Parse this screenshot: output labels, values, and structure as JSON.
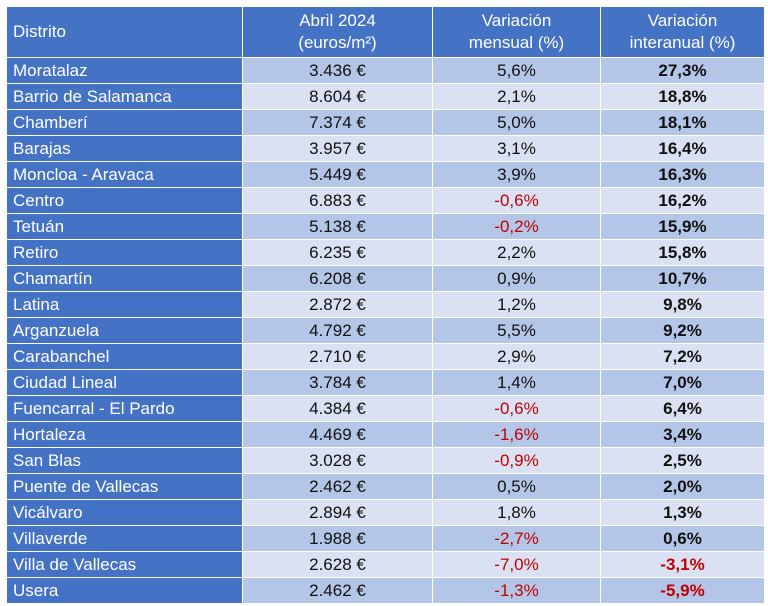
{
  "header": {
    "col1": "Distrito",
    "col2_line1": "Abril 2024",
    "col2_line2": "(euros/m²)",
    "col3_line1": "Variación",
    "col3_line2": "mensual (%)",
    "col4_line1": "Variación",
    "col4_line2": "interanual (%)"
  },
  "rows": [
    {
      "district": "Moratalaz",
      "price": "3.436 €",
      "monthly": "5,6%",
      "annual": "27,3%",
      "monthly_neg": false,
      "annual_neg": false
    },
    {
      "district": "Barrio de Salamanca",
      "price": "8.604 €",
      "monthly": "2,1%",
      "annual": "18,8%",
      "monthly_neg": false,
      "annual_neg": false
    },
    {
      "district": "Chamberí",
      "price": "7.374 €",
      "monthly": "5,0%",
      "annual": "18,1%",
      "monthly_neg": false,
      "annual_neg": false
    },
    {
      "district": "Barajas",
      "price": "3.957 €",
      "monthly": "3,1%",
      "annual": "16,4%",
      "monthly_neg": false,
      "annual_neg": false
    },
    {
      "district": "Moncloa - Aravaca",
      "price": "5.449 €",
      "monthly": "3,9%",
      "annual": "16,3%",
      "monthly_neg": false,
      "annual_neg": false
    },
    {
      "district": "Centro",
      "price": "6.883 €",
      "monthly": "-0,6%",
      "annual": "16,2%",
      "monthly_neg": true,
      "annual_neg": false
    },
    {
      "district": "Tetuán",
      "price": "5.138 €",
      "monthly": "-0,2%",
      "annual": "15,9%",
      "monthly_neg": true,
      "annual_neg": false
    },
    {
      "district": "Retiro",
      "price": "6.235 €",
      "monthly": "2,2%",
      "annual": "15,8%",
      "monthly_neg": false,
      "annual_neg": false
    },
    {
      "district": "Chamartín",
      "price": "6.208 €",
      "monthly": "0,9%",
      "annual": "10,7%",
      "monthly_neg": false,
      "annual_neg": false
    },
    {
      "district": "Latina",
      "price": "2.872 €",
      "monthly": "1,2%",
      "annual": "9,8%",
      "monthly_neg": false,
      "annual_neg": false
    },
    {
      "district": "Arganzuela",
      "price": "4.792 €",
      "monthly": "5,5%",
      "annual": "9,2%",
      "monthly_neg": false,
      "annual_neg": false
    },
    {
      "district": "Carabanchel",
      "price": "2.710 €",
      "monthly": "2,9%",
      "annual": "7,2%",
      "monthly_neg": false,
      "annual_neg": false
    },
    {
      "district": "Ciudad Lineal",
      "price": "3.784 €",
      "monthly": "1,4%",
      "annual": "7,0%",
      "monthly_neg": false,
      "annual_neg": false
    },
    {
      "district": "Fuencarral - El Pardo",
      "price": "4.384 €",
      "monthly": "-0,6%",
      "annual": "6,4%",
      "monthly_neg": true,
      "annual_neg": false
    },
    {
      "district": "Hortaleza",
      "price": "4.469 €",
      "monthly": "-1,6%",
      "annual": "3,4%",
      "monthly_neg": true,
      "annual_neg": false
    },
    {
      "district": "San Blas",
      "price": "3.028 €",
      "monthly": "-0,9%",
      "annual": "2,5%",
      "monthly_neg": true,
      "annual_neg": false
    },
    {
      "district": "Puente de Vallecas",
      "price": "2.462 €",
      "monthly": "0,5%",
      "annual": "2,0%",
      "monthly_neg": false,
      "annual_neg": false
    },
    {
      "district": "Vicálvaro",
      "price": "2.894 €",
      "monthly": "1,8%",
      "annual": "1,3%",
      "monthly_neg": false,
      "annual_neg": false
    },
    {
      "district": "Villaverde",
      "price": "1.988 €",
      "monthly": "-2,7%",
      "annual": "0,6%",
      "monthly_neg": true,
      "annual_neg": false
    },
    {
      "district": "Villa de Vallecas",
      "price": "2.628 €",
      "monthly": "-7,0%",
      "annual": "-3,1%",
      "monthly_neg": true,
      "annual_neg": true
    },
    {
      "district": "Usera",
      "price": "2.462 €",
      "monthly": "-1,3%",
      "annual": "-5,9%",
      "monthly_neg": true,
      "annual_neg": true
    }
  ]
}
